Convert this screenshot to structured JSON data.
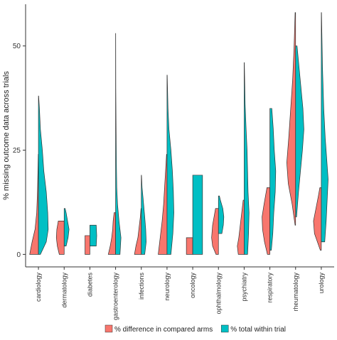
{
  "chart_data": {
    "type": "violin",
    "ylabel": "% missing outcome data across trials",
    "ylim": [
      -3,
      60
    ],
    "yticks": [
      0,
      25,
      50
    ],
    "categories": [
      "cardiology",
      "dermatology",
      "diabetes",
      "gastroenterology",
      "infections",
      "neurology",
      "oncology",
      "ophthalmology",
      "psychiatry",
      "respiratory",
      "rheumatology",
      "urology"
    ],
    "legend_position": "bottom",
    "series": [
      {
        "name": "% difference in compared arms",
        "color": "#F8766D",
        "side": "left",
        "violins": [
          {
            "min": 0,
            "max": 24,
            "profile": [
              [
                0,
                0.9
              ],
              [
                3,
                0.65
              ],
              [
                6,
                0.35
              ],
              [
                10,
                0.18
              ],
              [
                15,
                0.1
              ],
              [
                20,
                0.05
              ],
              [
                24,
                0.02
              ]
            ]
          },
          {
            "min": 0,
            "max": 8,
            "profile": [
              [
                0,
                0.5
              ],
              [
                2,
                0.7
              ],
              [
                4,
                0.8
              ],
              [
                6,
                0.75
              ],
              [
                8,
                0.6
              ]
            ]
          },
          {
            "min": 0,
            "max": 4.5,
            "profile": [
              [
                0,
                0.5
              ],
              [
                2,
                0.5
              ],
              [
                4.5,
                0.5
              ]
            ]
          },
          {
            "min": 0,
            "max": 10,
            "profile": [
              [
                0,
                0.75
              ],
              [
                2,
                0.55
              ],
              [
                4,
                0.4
              ],
              [
                6,
                0.3
              ],
              [
                8,
                0.25
              ],
              [
                10,
                0.15
              ]
            ]
          },
          {
            "min": 0,
            "max": 11,
            "profile": [
              [
                0,
                0.7
              ],
              [
                2,
                0.55
              ],
              [
                4,
                0.35
              ],
              [
                7,
                0.2
              ],
              [
                9,
                0.1
              ],
              [
                11,
                0.03
              ]
            ]
          },
          {
            "min": 0,
            "max": 24,
            "profile": [
              [
                0,
                0.9
              ],
              [
                4,
                0.7
              ],
              [
                8,
                0.5
              ],
              [
                12,
                0.35
              ],
              [
                16,
                0.25
              ],
              [
                20,
                0.15
              ],
              [
                24,
                0.05
              ]
            ]
          },
          {
            "min": 0,
            "max": 4,
            "profile": [
              [
                0,
                0.65
              ],
              [
                2,
                0.65
              ],
              [
                4,
                0.65
              ]
            ]
          },
          {
            "min": 0,
            "max": 11,
            "profile": [
              [
                0,
                0.25
              ],
              [
                2,
                0.6
              ],
              [
                4,
                0.7
              ],
              [
                7,
                0.6
              ],
              [
                9,
                0.45
              ],
              [
                11,
                0.3
              ]
            ]
          },
          {
            "min": 0,
            "max": 13,
            "profile": [
              [
                0,
                0.6
              ],
              [
                2,
                0.7
              ],
              [
                4,
                0.55
              ],
              [
                7,
                0.4
              ],
              [
                10,
                0.25
              ],
              [
                13,
                0.1
              ]
            ]
          },
          {
            "min": 0,
            "max": 16,
            "profile": [
              [
                0,
                0.25
              ],
              [
                3,
                0.55
              ],
              [
                6,
                0.75
              ],
              [
                9,
                0.8
              ],
              [
                12,
                0.6
              ],
              [
                16,
                0.3
              ]
            ]
          },
          {
            "min": 7,
            "max": 58,
            "profile": [
              [
                7,
                0.05
              ],
              [
                12,
                0.35
              ],
              [
                17,
                0.75
              ],
              [
                22,
                0.9
              ],
              [
                28,
                0.7
              ],
              [
                35,
                0.5
              ],
              [
                42,
                0.3
              ],
              [
                50,
                0.15
              ],
              [
                58,
                0.05
              ]
            ]
          },
          {
            "min": 1,
            "max": 16,
            "profile": [
              [
                1,
                0.1
              ],
              [
                3,
                0.4
              ],
              [
                5,
                0.7
              ],
              [
                8,
                0.8
              ],
              [
                11,
                0.55
              ],
              [
                14,
                0.3
              ],
              [
                16,
                0.15
              ]
            ]
          }
        ]
      },
      {
        "name": "% total within trial",
        "color": "#00BFC4",
        "side": "right",
        "violins": [
          {
            "min": 0,
            "max": 38,
            "profile": [
              [
                0,
                0.2
              ],
              [
                3,
                0.8
              ],
              [
                6,
                1.0
              ],
              [
                10,
                0.95
              ],
              [
                15,
                0.8
              ],
              [
                20,
                0.55
              ],
              [
                25,
                0.4
              ],
              [
                30,
                0.2
              ],
              [
                35,
                0.1
              ],
              [
                38,
                0.02
              ]
            ]
          },
          {
            "min": 2,
            "max": 11,
            "profile": [
              [
                2,
                0.2
              ],
              [
                4,
                0.4
              ],
              [
                6,
                0.5
              ],
              [
                8,
                0.35
              ],
              [
                10,
                0.2
              ],
              [
                11,
                0.1
              ]
            ]
          },
          {
            "min": 2,
            "max": 7,
            "profile": [
              [
                2,
                0.65
              ],
              [
                4.5,
                0.7
              ],
              [
                7,
                0.65
              ]
            ]
          },
          {
            "min": 0,
            "max": 53,
            "profile": [
              [
                0,
                0.45
              ],
              [
                4,
                0.55
              ],
              [
                8,
                0.35
              ],
              [
                12,
                0.2
              ],
              [
                16,
                0.12
              ],
              [
                22,
                0.08
              ],
              [
                30,
                0.05
              ],
              [
                40,
                0.02
              ],
              [
                53,
                0.01
              ]
            ]
          },
          {
            "min": 0,
            "max": 19,
            "profile": [
              [
                0,
                0.35
              ],
              [
                3,
                0.5
              ],
              [
                6,
                0.45
              ],
              [
                9,
                0.35
              ],
              [
                13,
                0.2
              ],
              [
                16,
                0.08
              ],
              [
                19,
                0.02
              ]
            ]
          },
          {
            "min": 0,
            "max": 43,
            "profile": [
              [
                0,
                0.4
              ],
              [
                5,
                0.6
              ],
              [
                10,
                0.7
              ],
              [
                15,
                0.65
              ],
              [
                20,
                0.55
              ],
              [
                25,
                0.4
              ],
              [
                30,
                0.2
              ],
              [
                35,
                0.1
              ],
              [
                43,
                0.02
              ]
            ]
          },
          {
            "min": 0,
            "max": 19,
            "profile": [
              [
                0,
                1.0
              ],
              [
                9,
                1.0
              ],
              [
                19,
                1.0
              ]
            ]
          },
          {
            "min": 5,
            "max": 14,
            "profile": [
              [
                5,
                0.35
              ],
              [
                7,
                0.5
              ],
              [
                9,
                0.55
              ],
              [
                11,
                0.45
              ],
              [
                13,
                0.2
              ],
              [
                14,
                0.1
              ]
            ]
          },
          {
            "min": 0,
            "max": 46,
            "profile": [
              [
                0,
                0.35
              ],
              [
                5,
                0.45
              ],
              [
                10,
                0.5
              ],
              [
                15,
                0.4
              ],
              [
                20,
                0.35
              ],
              [
                25,
                0.3
              ],
              [
                30,
                0.2
              ],
              [
                36,
                0.1
              ],
              [
                46,
                0.02
              ]
            ]
          },
          {
            "min": 1,
            "max": 35,
            "profile": [
              [
                1,
                0.15
              ],
              [
                5,
                0.3
              ],
              [
                10,
                0.4
              ],
              [
                15,
                0.55
              ],
              [
                20,
                0.6
              ],
              [
                25,
                0.45
              ],
              [
                30,
                0.35
              ],
              [
                35,
                0.2
              ]
            ]
          },
          {
            "min": 9,
            "max": 50,
            "profile": [
              [
                9,
                0.1
              ],
              [
                15,
                0.3
              ],
              [
                20,
                0.5
              ],
              [
                25,
                0.7
              ],
              [
                30,
                0.85
              ],
              [
                35,
                0.75
              ],
              [
                40,
                0.55
              ],
              [
                45,
                0.35
              ],
              [
                50,
                0.15
              ]
            ]
          },
          {
            "min": 3,
            "max": 58,
            "profile": [
              [
                3,
                0.35
              ],
              [
                8,
                0.5
              ],
              [
                13,
                0.6
              ],
              [
                18,
                0.7
              ],
              [
                23,
                0.55
              ],
              [
                28,
                0.4
              ],
              [
                35,
                0.25
              ],
              [
                45,
                0.12
              ],
              [
                58,
                0.02
              ]
            ]
          }
        ]
      }
    ]
  }
}
